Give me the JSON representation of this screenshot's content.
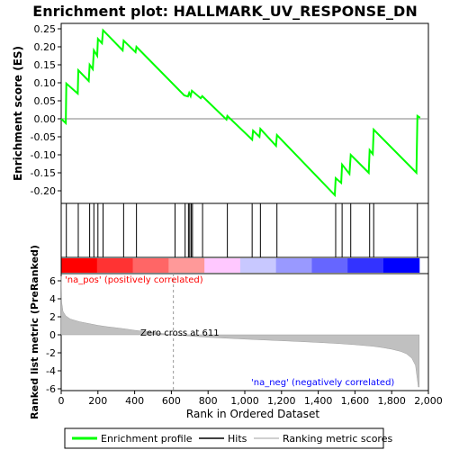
{
  "chart_data": {
    "type": "line",
    "title": "Enrichment plot: HALLMARK_UV_RESPONSE_DN",
    "es_panel": {
      "ylabel": "Enrichment score (ES)",
      "ylim": [
        -0.235,
        0.265
      ],
      "yticks": [
        "0.25",
        "0.20",
        "0.15",
        "0.10",
        "0.05",
        "0.00",
        "-0.05",
        "-0.10",
        "-0.15",
        "-0.20"
      ],
      "ytick_values": [
        0.25,
        0.2,
        0.15,
        0.1,
        0.05,
        0.0,
        -0.05,
        -0.1,
        -0.15,
        -0.2
      ],
      "points": [
        [
          0,
          0.0
        ],
        [
          25,
          -0.012
        ],
        [
          28,
          0.098
        ],
        [
          90,
          0.07
        ],
        [
          93,
          0.135
        ],
        [
          150,
          0.105
        ],
        [
          155,
          0.15
        ],
        [
          172,
          0.138
        ],
        [
          178,
          0.19
        ],
        [
          196,
          0.175
        ],
        [
          200,
          0.222
        ],
        [
          222,
          0.21
        ],
        [
          228,
          0.246
        ],
        [
          335,
          0.19
        ],
        [
          340,
          0.217
        ],
        [
          405,
          0.185
        ],
        [
          410,
          0.2
        ],
        [
          670,
          0.065
        ],
        [
          690,
          0.062
        ],
        [
          697,
          0.072
        ],
        [
          705,
          0.063
        ],
        [
          712,
          0.078
        ],
        [
          760,
          0.057
        ],
        [
          768,
          0.063
        ],
        [
          900,
          -0.002
        ],
        [
          905,
          0.008
        ],
        [
          1040,
          -0.058
        ],
        [
          1045,
          -0.033
        ],
        [
          1080,
          -0.05
        ],
        [
          1085,
          -0.028
        ],
        [
          1170,
          -0.075
        ],
        [
          1175,
          -0.045
        ],
        [
          1490,
          -0.212
        ],
        [
          1495,
          -0.165
        ],
        [
          1525,
          -0.178
        ],
        [
          1530,
          -0.127
        ],
        [
          1570,
          -0.153
        ],
        [
          1577,
          -0.1
        ],
        [
          1675,
          -0.15
        ],
        [
          1680,
          -0.087
        ],
        [
          1697,
          -0.098
        ],
        [
          1702,
          -0.03
        ],
        [
          1935,
          -0.15
        ],
        [
          1940,
          0.008
        ],
        [
          1955,
          0.003
        ]
      ]
    },
    "hits_panel": {
      "positions": [
        28,
        93,
        155,
        178,
        200,
        228,
        340,
        410,
        620,
        675,
        693,
        700,
        708,
        715,
        770,
        905,
        1040,
        1085,
        1175,
        1495,
        1530,
        1577,
        1680,
        1702,
        1940
      ]
    },
    "metric_panel": {
      "ylabel": "Ranked list metric (PreRanked)",
      "xlabel": "Rank in Ordered Dataset",
      "ylim": [
        -6.2,
        6.8
      ],
      "yticks": [
        "6",
        "4",
        "2",
        "0",
        "-2",
        "-4",
        "-6"
      ],
      "ytick_values": [
        6,
        4,
        2,
        0,
        -2,
        -4,
        -6
      ],
      "xticks": [
        "0",
        "200",
        "400",
        "600",
        "800",
        "1,000",
        "1,200",
        "1,400",
        "1,600",
        "1,800",
        "2,000"
      ],
      "xtick_values": [
        0,
        200,
        400,
        600,
        800,
        1000,
        1200,
        1400,
        1600,
        1800,
        2000
      ],
      "xlim": [
        0,
        2000
      ],
      "n_genes": 1950,
      "curve": [
        [
          0,
          6.5
        ],
        [
          3,
          3.6
        ],
        [
          10,
          2.6
        ],
        [
          25,
          2.1
        ],
        [
          50,
          1.75
        ],
        [
          100,
          1.45
        ],
        [
          150,
          1.25
        ],
        [
          200,
          1.05
        ],
        [
          250,
          0.9
        ],
        [
          300,
          0.78
        ],
        [
          350,
          0.65
        ],
        [
          400,
          0.5
        ],
        [
          450,
          0.38
        ],
        [
          500,
          0.28
        ],
        [
          550,
          0.14
        ],
        [
          611,
          0.0
        ],
        [
          700,
          -0.14
        ],
        [
          800,
          -0.28
        ],
        [
          900,
          -0.38
        ],
        [
          1000,
          -0.48
        ],
        [
          1100,
          -0.57
        ],
        [
          1200,
          -0.66
        ],
        [
          1300,
          -0.75
        ],
        [
          1400,
          -0.85
        ],
        [
          1500,
          -0.96
        ],
        [
          1600,
          -1.1
        ],
        [
          1700,
          -1.28
        ],
        [
          1750,
          -1.42
        ],
        [
          1800,
          -1.6
        ],
        [
          1850,
          -1.85
        ],
        [
          1880,
          -2.1
        ],
        [
          1910,
          -2.6
        ],
        [
          1930,
          -3.4
        ],
        [
          1945,
          -5.8
        ],
        [
          1950,
          -5.8
        ]
      ]
    },
    "annotations": {
      "zero_cross": "Zero cross at 611",
      "zero_cross_value": 611,
      "pos_label": "'na_pos' (positively correlated)",
      "neg_label": "'na_neg' (negatively correlated)"
    },
    "legend": {
      "items": [
        "Enrichment profile",
        "Hits",
        "Ranking metric scores"
      ],
      "placement": "bottom"
    },
    "colors": {
      "es_line": "#00ff00",
      "hit_line": "#000000",
      "metric_fill": "#c0c0c0",
      "pos_text": "#ff0000",
      "neg_text": "#0000ff",
      "gradient": [
        "#ff0000",
        "#ff3333",
        "#ff6666",
        "#ff9999",
        "#ffc8ff",
        "#c8c8ff",
        "#9999ff",
        "#6666ff",
        "#3333ff",
        "#0000ff"
      ]
    }
  }
}
